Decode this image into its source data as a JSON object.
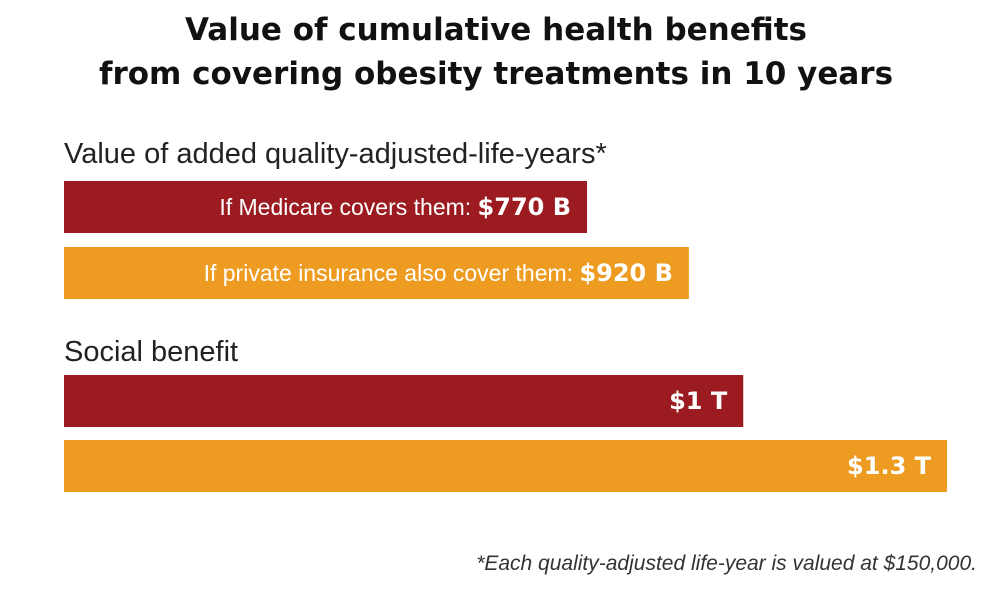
{
  "title_lines": [
    "Value of cumulative health benefits",
    "from covering obesity treatments in 10 years"
  ],
  "footnote": "*Each quality-adjusted life-year is valued at $150,000.",
  "colors": {
    "medicare": "#9b1b20",
    "private": "#ee9c21"
  },
  "chart_data": {
    "type": "bar",
    "orientation": "horizontal",
    "unit": "billion USD",
    "title": "Value of cumulative health benefits from covering obesity treatments in 10 years",
    "footnote": "*Each quality-adjusted life-year is valued at $150,000.",
    "grid": false,
    "legend": "none",
    "xlim": [
      0,
      1300
    ],
    "groups": [
      {
        "label": "Value of added quality-adjusted-life-years*",
        "bars": [
          {
            "label": "If Medicare covers them:",
            "value": 770,
            "display": "$770 B",
            "color": "medicare"
          },
          {
            "label": "If private insurance also cover them:",
            "value": 920,
            "display": "$920 B",
            "color": "private"
          }
        ]
      },
      {
        "label": "Social benefit",
        "bars": [
          {
            "label": "",
            "value": 1000,
            "display": "$1 T",
            "color": "medicare"
          },
          {
            "label": "",
            "value": 1300,
            "display": "$1.3 T",
            "color": "private"
          }
        ]
      }
    ]
  }
}
